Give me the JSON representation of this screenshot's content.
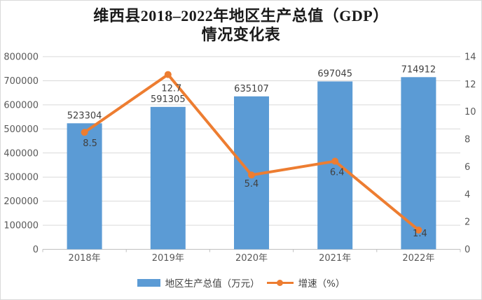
{
  "title": {
    "line1": "维西县2018–2022年地区生产总值（GDP）",
    "line2": "情况变化表"
  },
  "legend": [
    {
      "label": "地区生产总值（万元）",
      "color": "#5B9BD5",
      "swatch": "bar"
    },
    {
      "label": "增速（%）",
      "color": "#ED7D31",
      "swatch": "line-marker"
    }
  ],
  "chart_data": {
    "type": "bar+line",
    "title": "维西县2018–2022年地区生产总值（GDP）情况变化表",
    "categories": [
      "2018年",
      "2019年",
      "2020年",
      "2021年",
      "2022年"
    ],
    "series": [
      {
        "name": "地区生产总值（万元）",
        "type": "bar",
        "axis": "left",
        "color": "#5B9BD5",
        "values": [
          523304,
          591305,
          635107,
          697045,
          714912
        ]
      },
      {
        "name": "增速（%）",
        "type": "line",
        "axis": "right",
        "color": "#ED7D31",
        "values": [
          8.5,
          12.7,
          5.4,
          6.4,
          1.4
        ]
      }
    ],
    "left_axis": {
      "min": 0,
      "max": 800000,
      "step": 100000
    },
    "right_axis": {
      "min": 0,
      "max": 14,
      "step": 2
    },
    "grid": true,
    "legend_position": "bottom",
    "colors": {
      "grid": "#D9D9D9",
      "axis_line": "#BFBFBF",
      "tick_label": "#595959",
      "data_label": "#404040",
      "border": "#D9D9D9"
    }
  }
}
